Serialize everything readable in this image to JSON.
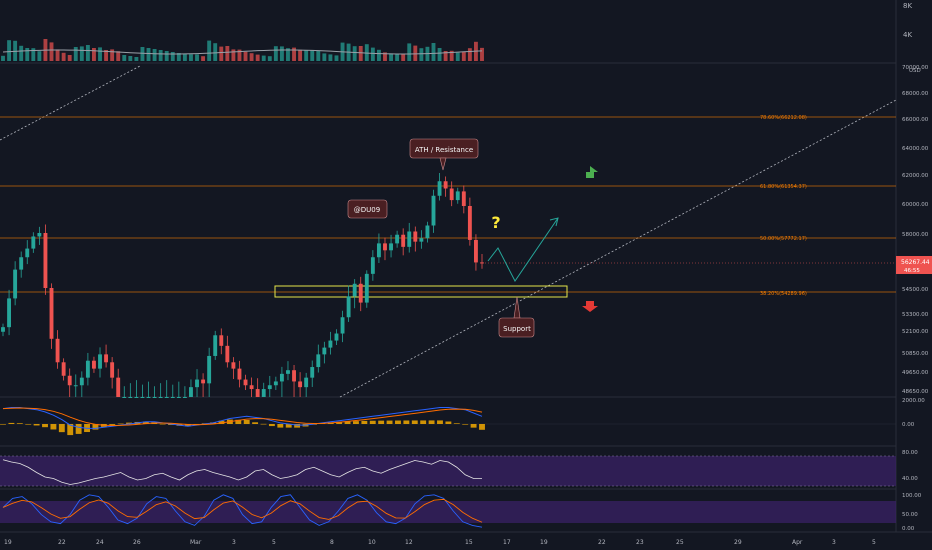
{
  "colors": {
    "background": "#131722",
    "up": "#26a69a",
    "down": "#ef5350",
    "fib_line": "#f57c00",
    "zone": "#e6e64a",
    "macd_line": "#2962ff",
    "signal_line": "#ff6d00",
    "histogram": "#f2a900",
    "rsi_line": "#ffffff",
    "band_fill": "#4a2a7a"
  },
  "volume": {
    "scale_labels": [
      "8K",
      "4K"
    ]
  },
  "price_axis": {
    "top_label": "70000.00",
    "unit_label": "USD",
    "labels": [
      "68000.00",
      "66000.00",
      "64000.00",
      "62000.00",
      "60000.00",
      "58000.00",
      "56267.44",
      "54500.00",
      "53300.00",
      "52100.00",
      "50850.00",
      "49650.00",
      "48650.00"
    ],
    "current_price": "56267.44",
    "countdown": "46:55"
  },
  "fib_levels": [
    {
      "label": "78.60%(66212.08)"
    },
    {
      "label": "61.80%(61354.37)"
    },
    {
      "label": "50.00%(57772.17)"
    },
    {
      "label": "38.20%(54289.96)"
    }
  ],
  "annotations": {
    "ath": "ATH / Resistance",
    "author": "@DU09",
    "support": "Support",
    "question": "?"
  },
  "macd_axis": {
    "labels": [
      "2000.00",
      "0.00"
    ]
  },
  "rsi_axis": {
    "labels": [
      "80.00",
      "40.00"
    ]
  },
  "stoch_axis": {
    "labels": [
      "100.00",
      "50.00",
      "0.00"
    ]
  },
  "time_axis": {
    "labels": [
      "19",
      "22",
      "24",
      "26",
      "Mar",
      "3",
      "5",
      "8",
      "10",
      "12",
      "15",
      "17",
      "19",
      "22",
      "23",
      "25",
      "29",
      "Apr",
      "3",
      "5"
    ]
  },
  "chart_data": {
    "type": "candlestick",
    "symbol_unit": "USD",
    "candles_close": [
      52300,
      54000,
      55800,
      56600,
      57100,
      57800,
      58000,
      54500,
      51600,
      50200,
      49400,
      48900,
      48900,
      49300,
      50300,
      49800,
      50700,
      50200,
      49300,
      48600,
      48600,
      48600,
      48600,
      48600,
      48600,
      48600,
      48600,
      48600,
      48600,
      48600,
      48600,
      48800,
      49200,
      49000,
      50600,
      51800,
      51200,
      50200,
      49800,
      49200,
      48900,
      48700,
      48600,
      48700,
      48900,
      49100,
      49500,
      49700,
      49100,
      48800,
      49300,
      49900,
      50700,
      51100,
      51500,
      51900,
      53000,
      54100,
      54800,
      53800,
      55500,
      56600,
      57400,
      57000,
      57400,
      57900,
      57200,
      58100,
      57500,
      57700,
      58500,
      60500,
      61500,
      61000,
      60200,
      60800,
      59800,
      57600,
      56300,
      56267
    ],
    "macd": [
      1400,
      1500,
      1500,
      1400,
      1300,
      1100,
      800,
      400,
      -100,
      -300,
      -400,
      -400,
      -300,
      -200,
      -100,
      0,
      100,
      200,
      200,
      100,
      0,
      -100,
      -200,
      -100,
      0,
      100,
      300,
      500,
      600,
      700,
      600,
      500,
      300,
      100,
      0,
      -100,
      -100,
      0,
      100,
      200,
      300,
      400,
      500,
      600,
      700,
      800,
      900,
      1000,
      1100,
      1200,
      1300,
      1400,
      1500,
      1500,
      1400,
      1300,
      1000,
      700
    ],
    "rsi": [
      75,
      72,
      70,
      65,
      58,
      52,
      50,
      45,
      42,
      44,
      47,
      50,
      52,
      55,
      58,
      52,
      48,
      50,
      55,
      57,
      52,
      48,
      55,
      60,
      62,
      58,
      55,
      52,
      48,
      52,
      60,
      62,
      55,
      50,
      52,
      55,
      62,
      65,
      60,
      55,
      52,
      58,
      63,
      65,
      60,
      57,
      62,
      66,
      70,
      74,
      72,
      69,
      74,
      72,
      65,
      55,
      50,
      50
    ],
    "stoch": [
      60,
      85,
      90,
      70,
      40,
      20,
      15,
      40,
      80,
      95,
      90,
      60,
      25,
      15,
      30,
      70,
      90,
      85,
      50,
      20,
      10,
      35,
      80,
      95,
      85,
      40,
      15,
      20,
      60,
      90,
      95,
      60,
      25,
      10,
      20,
      50,
      85,
      95,
      80,
      45,
      20,
      15,
      30,
      70,
      92,
      95,
      85,
      50,
      20,
      10,
      5
    ]
  }
}
